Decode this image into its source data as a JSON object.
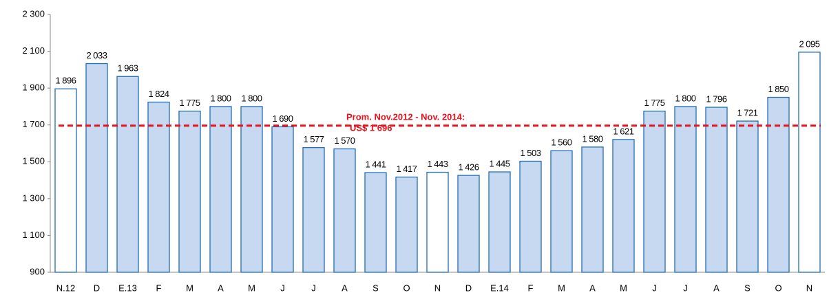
{
  "chart_data": {
    "type": "bar",
    "categories": [
      "N.12",
      "D",
      "E.13",
      "F",
      "M",
      "A",
      "M",
      "J",
      "J",
      "A",
      "S",
      "O",
      "N",
      "D",
      "E.14",
      "F",
      "M",
      "A",
      "M",
      "J",
      "J",
      "A",
      "S",
      "O",
      "N"
    ],
    "values": [
      1896,
      2033,
      1963,
      1824,
      1775,
      1800,
      1800,
      1690,
      1577,
      1570,
      1441,
      1417,
      1443,
      1426,
      1445,
      1503,
      1560,
      1580,
      1621,
      1775,
      1800,
      1796,
      1721,
      1850,
      2095
    ],
    "value_labels": [
      "1 896",
      "2 033",
      "1 963",
      "1 824",
      "1 775",
      "1 800",
      "1 800",
      "1 690",
      "1 577",
      "1 570",
      "1 441",
      "1 417",
      "1 443",
      "1 426",
      "1 445",
      "1 503",
      "1 560",
      "1 580",
      "1 621",
      "1 775",
      "1 800",
      "1 796",
      "1 721",
      "1 850",
      "2 095"
    ],
    "colors": [
      "#ffffff",
      "#c6d9f1",
      "#c6d9f1",
      "#c6d9f1",
      "#c6d9f1",
      "#c6d9f1",
      "#c6d9f1",
      "#c6d9f1",
      "#c6d9f1",
      "#c6d9f1",
      "#c6d9f1",
      "#c6d9f1",
      "#ffffff",
      "#c6d9f1",
      "#c6d9f1",
      "#c6d9f1",
      "#c6d9f1",
      "#c6d9f1",
      "#c6d9f1",
      "#c6d9f1",
      "#c6d9f1",
      "#c6d9f1",
      "#c6d9f1",
      "#c6d9f1",
      "#ffffff"
    ],
    "edge_color": "#1f6db5",
    "ylim": [
      900,
      2300
    ],
    "yticks": [
      900,
      {
        "value": 1100,
        "label": "1 100"
      },
      {
        "value": 1300,
        "label": "1 300"
      },
      {
        "value": 1500,
        "label": "1 500"
      },
      {
        "value": 1700,
        "label": "1 700"
      },
      {
        "value": 1900,
        "label": "1 900"
      },
      {
        "value": 2100,
        "label": "2 100"
      },
      {
        "value": 2300,
        "label": "2 300"
      }
    ],
    "reference_line": {
      "value": 1696,
      "color": "#e8101a",
      "label": [
        "Prom. Nov.2012 - Nov. 2014:",
        "US$ 1 696"
      ]
    }
  }
}
